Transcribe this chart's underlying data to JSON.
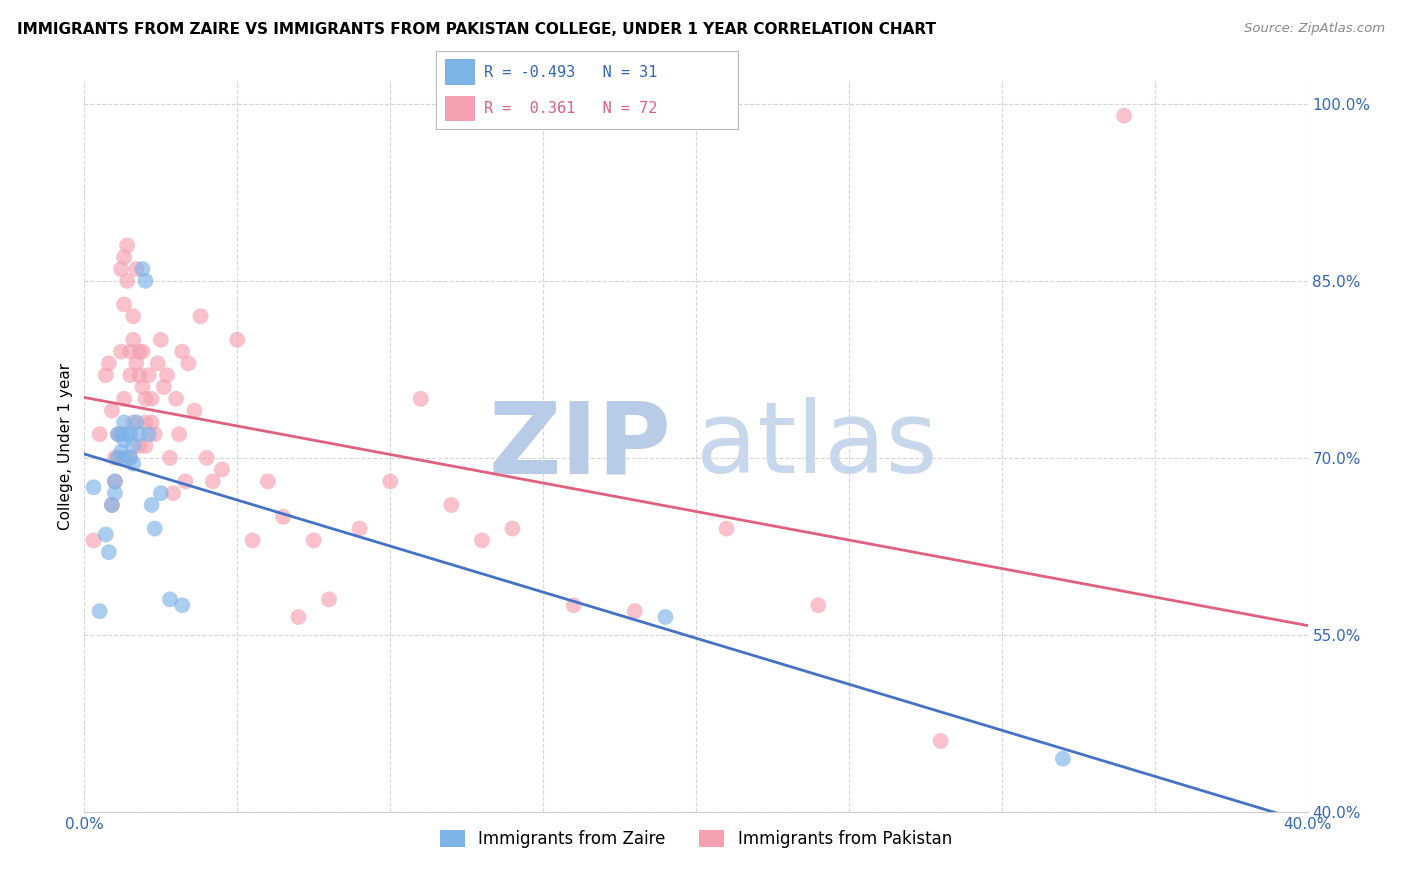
{
  "title": "IMMIGRANTS FROM ZAIRE VS IMMIGRANTS FROM PAKISTAN COLLEGE, UNDER 1 YEAR CORRELATION CHART",
  "source": "Source: ZipAtlas.com",
  "ylabel": "College, Under 1 year",
  "legend_zaire_label": "Immigrants from Zaire",
  "legend_pakistan_label": "Immigrants from Pakistan",
  "zaire_R": -0.493,
  "zaire_N": 31,
  "pakistan_R": 0.361,
  "pakistan_N": 72,
  "xmin": 0.0,
  "xmax": 0.4,
  "ymin": 0.4,
  "ymax": 1.02,
  "yticks": [
    0.4,
    0.55,
    0.7,
    0.85,
    1.0
  ],
  "ytick_labels": [
    "40.0%",
    "55.0%",
    "70.0%",
    "85.0%",
    "100.0%"
  ],
  "xtick_positions": [
    0.0,
    0.4
  ],
  "xtick_labels": [
    "0.0%",
    "40.0%"
  ],
  "color_zaire": "#7EB3E8",
  "color_pakistan": "#F5A0B0",
  "color_zaire_line": "#4472C4",
  "color_pakistan_line": "#E06080",
  "watermark_zip": "#C8D8F0",
  "watermark_atlas": "#C8D8F0",
  "zaire_points_x": [
    0.003,
    0.005,
    0.007,
    0.008,
    0.009,
    0.01,
    0.01,
    0.011,
    0.011,
    0.012,
    0.012,
    0.013,
    0.013,
    0.013,
    0.014,
    0.015,
    0.015,
    0.016,
    0.016,
    0.017,
    0.018,
    0.019,
    0.02,
    0.021,
    0.022,
    0.023,
    0.025,
    0.028,
    0.032,
    0.19,
    0.32
  ],
  "zaire_points_y": [
    0.675,
    0.57,
    0.635,
    0.62,
    0.66,
    0.68,
    0.67,
    0.72,
    0.7,
    0.72,
    0.705,
    0.73,
    0.715,
    0.7,
    0.72,
    0.72,
    0.7,
    0.71,
    0.695,
    0.73,
    0.72,
    0.86,
    0.85,
    0.72,
    0.66,
    0.64,
    0.67,
    0.58,
    0.575,
    0.565,
    0.445
  ],
  "pakistan_points_x": [
    0.003,
    0.005,
    0.007,
    0.008,
    0.009,
    0.009,
    0.01,
    0.01,
    0.011,
    0.011,
    0.012,
    0.012,
    0.013,
    0.013,
    0.013,
    0.014,
    0.014,
    0.015,
    0.015,
    0.015,
    0.016,
    0.016,
    0.016,
    0.017,
    0.017,
    0.018,
    0.018,
    0.018,
    0.019,
    0.019,
    0.02,
    0.02,
    0.02,
    0.021,
    0.022,
    0.022,
    0.023,
    0.024,
    0.025,
    0.026,
    0.027,
    0.028,
    0.029,
    0.03,
    0.031,
    0.032,
    0.033,
    0.034,
    0.036,
    0.038,
    0.04,
    0.042,
    0.045,
    0.05,
    0.055,
    0.06,
    0.065,
    0.07,
    0.075,
    0.08,
    0.09,
    0.1,
    0.11,
    0.12,
    0.13,
    0.14,
    0.16,
    0.18,
    0.21,
    0.24,
    0.28,
    0.34
  ],
  "pakistan_points_y": [
    0.63,
    0.72,
    0.77,
    0.78,
    0.66,
    0.74,
    0.7,
    0.68,
    0.72,
    0.7,
    0.86,
    0.79,
    0.87,
    0.83,
    0.75,
    0.88,
    0.85,
    0.79,
    0.77,
    0.7,
    0.82,
    0.8,
    0.73,
    0.86,
    0.78,
    0.79,
    0.77,
    0.71,
    0.79,
    0.76,
    0.75,
    0.73,
    0.71,
    0.77,
    0.75,
    0.73,
    0.72,
    0.78,
    0.8,
    0.76,
    0.77,
    0.7,
    0.67,
    0.75,
    0.72,
    0.79,
    0.68,
    0.78,
    0.74,
    0.82,
    0.7,
    0.68,
    0.69,
    0.8,
    0.63,
    0.68,
    0.65,
    0.565,
    0.63,
    0.58,
    0.64,
    0.68,
    0.75,
    0.66,
    0.63,
    0.64,
    0.575,
    0.57,
    0.64,
    0.575,
    0.46,
    0.99
  ]
}
